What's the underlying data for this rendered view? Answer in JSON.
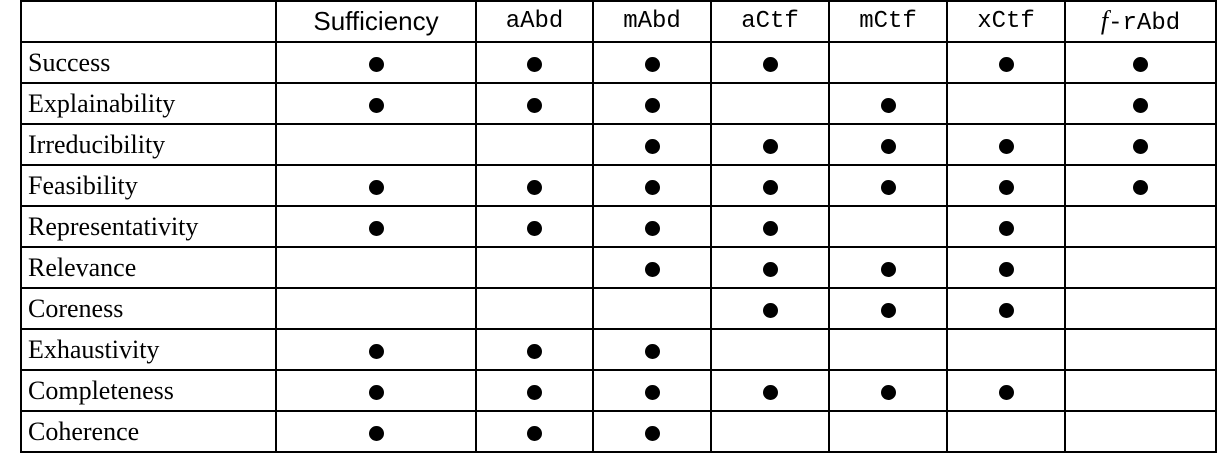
{
  "table": {
    "corner": "",
    "columns": [
      {
        "label": "Sufficiency",
        "style": "sans"
      },
      {
        "label": "aAbd",
        "style": "mono"
      },
      {
        "label": "mAbd",
        "style": "mono"
      },
      {
        "label": "aCtf",
        "style": "mono"
      },
      {
        "label": "mCtf",
        "style": "mono"
      },
      {
        "label": "xCtf",
        "style": "mono"
      },
      {
        "label_prefix": "f",
        "label": "-rAbd",
        "style": "mono"
      }
    ],
    "mark_icon": "filled-circle",
    "rows": [
      {
        "label": "Success",
        "marks": [
          1,
          1,
          1,
          1,
          0,
          1,
          1
        ]
      },
      {
        "label": "Explainability",
        "marks": [
          1,
          1,
          1,
          0,
          1,
          0,
          1
        ]
      },
      {
        "label": "Irreducibility",
        "marks": [
          0,
          0,
          1,
          1,
          1,
          1,
          1
        ]
      },
      {
        "label": "Feasibility",
        "marks": [
          1,
          1,
          1,
          1,
          1,
          1,
          1
        ]
      },
      {
        "label": "Representativity",
        "marks": [
          1,
          1,
          1,
          1,
          0,
          1,
          0
        ]
      },
      {
        "label": "Relevance",
        "marks": [
          0,
          0,
          1,
          1,
          1,
          1,
          0
        ]
      },
      {
        "label": "Coreness",
        "marks": [
          0,
          0,
          0,
          1,
          1,
          1,
          0
        ]
      },
      {
        "label": "Exhaustivity",
        "marks": [
          1,
          1,
          1,
          0,
          0,
          0,
          0
        ]
      },
      {
        "label": "Completeness",
        "marks": [
          1,
          1,
          1,
          1,
          1,
          1,
          0
        ]
      },
      {
        "label": "Coherence",
        "marks": [
          1,
          1,
          1,
          0,
          0,
          0,
          0
        ]
      }
    ]
  }
}
